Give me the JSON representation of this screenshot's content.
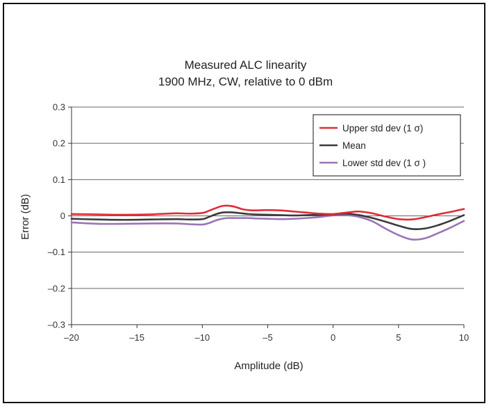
{
  "chart_data": {
    "type": "line",
    "title": "Measured ALC linearity",
    "subtitle": "1900 MHz, CW, relative to 0 dBm",
    "xlabel": "Amplitude (dB)",
    "ylabel": "Error (dB)",
    "xlim": [
      -20,
      10
    ],
    "ylim": [
      -0.3,
      0.3
    ],
    "xticks": [
      -20,
      -15,
      -10,
      -5,
      0,
      5,
      10
    ],
    "xtick_labels": [
      "–20",
      "–15",
      "–10",
      "–5",
      "0",
      "5",
      "10"
    ],
    "yticks": [
      0.3,
      0.2,
      0.1,
      0,
      -0.1,
      -0.2,
      -0.3
    ],
    "ytick_labels": [
      "0.3",
      "0.2",
      "0.1",
      "0",
      "–0.1",
      "–0.2",
      "–0.3"
    ],
    "grid": "horizontal",
    "legend_position": "top-right",
    "series": [
      {
        "name": "Upper std dev (1 σ)",
        "color": "#e02b35",
        "x": [
          -20,
          -18,
          -16,
          -14,
          -12,
          -11,
          -10,
          -9.5,
          -9,
          -8.5,
          -8,
          -7.5,
          -7,
          -6.5,
          -6,
          -5,
          -4,
          -3,
          -2,
          -1,
          0,
          1,
          2,
          3,
          4,
          5,
          6,
          7,
          8,
          9,
          10
        ],
        "y": [
          0.005,
          0.004,
          0.003,
          0.004,
          0.007,
          0.006,
          0.008,
          0.014,
          0.021,
          0.027,
          0.028,
          0.025,
          0.019,
          0.016,
          0.015,
          0.016,
          0.015,
          0.012,
          0.009,
          0.006,
          0.005,
          0.009,
          0.012,
          0.007,
          -0.002,
          -0.009,
          -0.01,
          -0.004,
          0.004,
          0.011,
          0.019
        ]
      },
      {
        "name": "Mean",
        "color": "#3a3a3a",
        "x": [
          -20,
          -18,
          -16,
          -14,
          -12,
          -11,
          -10,
          -9.5,
          -9,
          -8.5,
          -8,
          -7.5,
          -7,
          -6.5,
          -6,
          -5,
          -4,
          -3,
          -2,
          -1,
          0,
          1,
          2,
          3,
          4,
          5,
          6,
          7,
          8,
          9,
          10
        ],
        "y": [
          -0.008,
          -0.01,
          -0.011,
          -0.01,
          -0.009,
          -0.01,
          -0.009,
          -0.003,
          0.004,
          0.009,
          0.01,
          0.009,
          0.007,
          0.005,
          0.004,
          0.003,
          0.002,
          0.001,
          0.002,
          0.003,
          0.004,
          0.006,
          0.002,
          -0.006,
          -0.016,
          -0.027,
          -0.036,
          -0.035,
          -0.026,
          -0.013,
          0.002
        ]
      },
      {
        "name": "Lower std dev (1 σ )",
        "color": "#9b72b8",
        "x": [
          -20,
          -18,
          -16,
          -14,
          -12,
          -11,
          -10,
          -9.5,
          -9,
          -8.5,
          -8,
          -7.5,
          -7,
          -6.5,
          -6,
          -5,
          -4,
          -3,
          -2,
          -1,
          0,
          1,
          2,
          3,
          4,
          5,
          6,
          7,
          8,
          9,
          10
        ],
        "y": [
          -0.018,
          -0.022,
          -0.022,
          -0.021,
          -0.021,
          -0.023,
          -0.024,
          -0.02,
          -0.013,
          -0.008,
          -0.006,
          -0.006,
          -0.006,
          -0.006,
          -0.007,
          -0.008,
          -0.009,
          -0.008,
          -0.006,
          -0.003,
          0.001,
          0.002,
          -0.003,
          -0.015,
          -0.035,
          -0.053,
          -0.065,
          -0.062,
          -0.048,
          -0.032,
          -0.014
        ]
      }
    ]
  }
}
